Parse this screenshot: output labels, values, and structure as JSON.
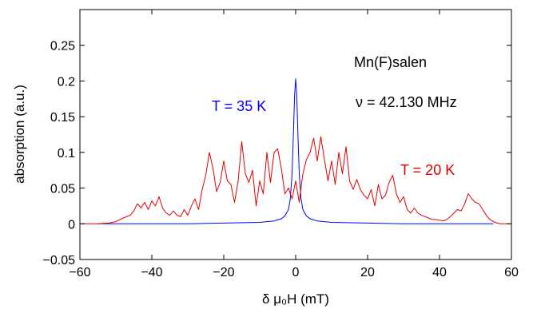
{
  "chart_data": {
    "type": "line",
    "xlabel": "δ μ₀H (mT)",
    "ylabel": "absorption (a.u.)",
    "xlim": [
      -60,
      60
    ],
    "ylim": [
      -0.05,
      0.3
    ],
    "x_ticks": [
      -60,
      -40,
      -20,
      0,
      20,
      40,
      60
    ],
    "y_ticks": [
      -0.05,
      0,
      0.05,
      0.1,
      0.15,
      0.2,
      0.25
    ],
    "y_tick_labels": [
      "−0.05",
      "0",
      "0.05",
      "0.1",
      "0.15",
      "0.2",
      "0.25"
    ],
    "grid": false,
    "annotations": {
      "sample": "Mn(F)salen",
      "frequency": "ν = 42.130 MHz",
      "label_35K": "T = 35 K",
      "label_20K": "T = 20 K"
    },
    "series": [
      {
        "color": "#0000ff",
        "x": [
          -55,
          -30,
          -20,
          -10,
          -6,
          -4,
          -3,
          -2,
          -1.5,
          -1,
          -0.6,
          -0.3,
          0,
          0.3,
          0.6,
          1,
          1.5,
          2,
          3,
          4,
          6,
          10,
          20,
          30,
          55
        ],
        "y": [
          0,
          0,
          0.001,
          0.002,
          0.004,
          0.007,
          0.011,
          0.02,
          0.035,
          0.07,
          0.13,
          0.18,
          0.203,
          0.18,
          0.13,
          0.07,
          0.035,
          0.02,
          0.011,
          0.007,
          0.004,
          0.002,
          0.001,
          0,
          0
        ]
      },
      {
        "color": "#e00000",
        "x": [
          -60,
          -55,
          -52,
          -50,
          -48,
          -46,
          -45,
          -44,
          -43,
          -42,
          -41,
          -40,
          -39,
          -38,
          -37,
          -36,
          -35,
          -34,
          -33,
          -32,
          -31,
          -30,
          -29,
          -28,
          -27,
          -26,
          -25,
          -24,
          -23,
          -22,
          -21,
          -20,
          -19,
          -18,
          -17,
          -16,
          -15,
          -14,
          -13,
          -12,
          -11,
          -10,
          -9,
          -8,
          -7,
          -6,
          -5,
          -4,
          -3,
          -2,
          -1,
          0,
          1,
          2,
          3,
          4,
          5,
          6,
          7,
          8,
          9,
          10,
          11,
          12,
          13,
          14,
          15,
          16,
          17,
          18,
          19,
          20,
          21,
          22,
          23,
          24,
          25,
          26,
          27,
          28,
          29,
          30,
          31,
          32,
          33,
          34,
          35,
          36,
          37,
          38,
          39,
          40,
          41,
          42,
          43,
          44,
          45,
          46,
          47,
          48,
          49,
          50,
          51,
          52,
          53,
          54,
          55,
          56,
          57,
          58,
          59,
          60
        ],
        "y": [
          0,
          0,
          0.001,
          0.003,
          0.008,
          0.012,
          0.018,
          0.028,
          0.022,
          0.03,
          0.02,
          0.032,
          0.025,
          0.038,
          0.022,
          0.015,
          0.012,
          0.018,
          0.012,
          0.01,
          0.02,
          0.012,
          0.025,
          0.035,
          0.02,
          0.048,
          0.068,
          0.1,
          0.078,
          0.045,
          0.058,
          0.088,
          0.06,
          0.055,
          0.03,
          0.06,
          0.115,
          0.07,
          0.058,
          0.075,
          0.025,
          0.06,
          0.042,
          0.1,
          0.058,
          0.1,
          0.105,
          0.078,
          0.042,
          0.05,
          0.035,
          0.06,
          0.03,
          0.07,
          0.09,
          0.1,
          0.12,
          0.088,
          0.122,
          0.09,
          0.06,
          0.088,
          0.055,
          0.1,
          0.07,
          0.108,
          0.06,
          0.048,
          0.062,
          0.048,
          0.04,
          0.035,
          0.048,
          0.025,
          0.055,
          0.035,
          0.04,
          0.058,
          0.068,
          0.042,
          0.03,
          0.038,
          0.02,
          0.015,
          0.022,
          0.015,
          0.012,
          0.01,
          0.008,
          0.006,
          0.006,
          0.005,
          0.004,
          0.006,
          0.01,
          0.015,
          0.02,
          0.018,
          0.028,
          0.042,
          0.035,
          0.03,
          0.028,
          0.02,
          0.012,
          0.006,
          0.003,
          0.001,
          0,
          0,
          0,
          0
        ]
      }
    ]
  }
}
